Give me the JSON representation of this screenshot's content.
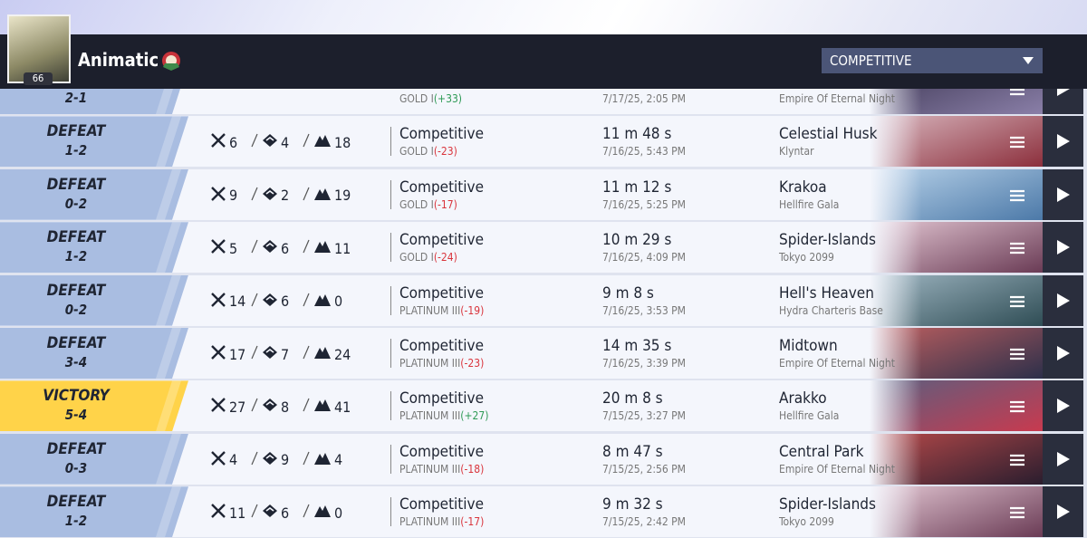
{
  "header": {
    "player_name": "Animatic",
    "level": "66",
    "mode_select": "COMPETITIVE"
  },
  "matches": [
    {
      "result": "",
      "score": "2-1",
      "kills": null,
      "deaths": null,
      "assists": null,
      "mode": "",
      "rank": "GOLD I",
      "delta": "(+33)",
      "duration": "",
      "date": "7/17/25, 2:05 PM",
      "map": "",
      "location": "Empire Of Eternal Night"
    },
    {
      "result": "DEFEAT",
      "score": "1-2",
      "kills": 6,
      "deaths": 4,
      "assists": 18,
      "mode": "Competitive",
      "rank": "GOLD I",
      "delta": "(-23)",
      "duration": "11 m 48 s",
      "date": "7/16/25, 5:43 PM",
      "map": "Celestial Husk",
      "location": "Klyntar"
    },
    {
      "result": "DEFEAT",
      "score": "0-2",
      "kills": 9,
      "deaths": 2,
      "assists": 19,
      "mode": "Competitive",
      "rank": "GOLD I",
      "delta": "(-17)",
      "duration": "11 m 12 s",
      "date": "7/16/25, 5:25 PM",
      "map": "Krakoa",
      "location": "Hellfire Gala"
    },
    {
      "result": "DEFEAT",
      "score": "1-2",
      "kills": 5,
      "deaths": 6,
      "assists": 11,
      "mode": "Competitive",
      "rank": "GOLD I",
      "delta": "(-24)",
      "duration": "10 m 29 s",
      "date": "7/16/25, 4:09 PM",
      "map": "Spider-Islands",
      "location": "Tokyo 2099"
    },
    {
      "result": "DEFEAT",
      "score": "0-2",
      "kills": 14,
      "deaths": 6,
      "assists": 0,
      "mode": "Competitive",
      "rank": "PLATINUM III",
      "delta": "(-19)",
      "duration": "9 m 8 s",
      "date": "7/16/25, 3:53 PM",
      "map": "Hell's Heaven",
      "location": "Hydra Charteris Base"
    },
    {
      "result": "DEFEAT",
      "score": "3-4",
      "kills": 17,
      "deaths": 7,
      "assists": 24,
      "mode": "Competitive",
      "rank": "PLATINUM III",
      "delta": "(-23)",
      "duration": "14 m 35 s",
      "date": "7/16/25, 3:39 PM",
      "map": "Midtown",
      "location": "Empire Of Eternal Night"
    },
    {
      "result": "VICTORY",
      "score": "5-4",
      "kills": 27,
      "deaths": 8,
      "assists": 41,
      "mode": "Competitive",
      "rank": "PLATINUM III",
      "delta": "(+27)",
      "duration": "20 m 8 s",
      "date": "7/15/25, 3:27 PM",
      "map": "Arakko",
      "location": "Hellfire Gala"
    },
    {
      "result": "DEFEAT",
      "score": "0-3",
      "kills": 4,
      "deaths": 9,
      "assists": 4,
      "mode": "Competitive",
      "rank": "PLATINUM III",
      "delta": "(-18)",
      "duration": "8 m 47 s",
      "date": "7/15/25, 2:56 PM",
      "map": "Central Park",
      "location": "Empire Of Eternal Night"
    },
    {
      "result": "DEFEAT",
      "score": "1-2",
      "kills": 11,
      "deaths": 6,
      "assists": 0,
      "mode": "Competitive",
      "rank": "PLATINUM III",
      "delta": "(-17)",
      "duration": "9 m 32 s",
      "date": "7/15/25, 2:42 PM",
      "map": "Spider-Islands",
      "location": "Tokyo 2099"
    }
  ]
}
